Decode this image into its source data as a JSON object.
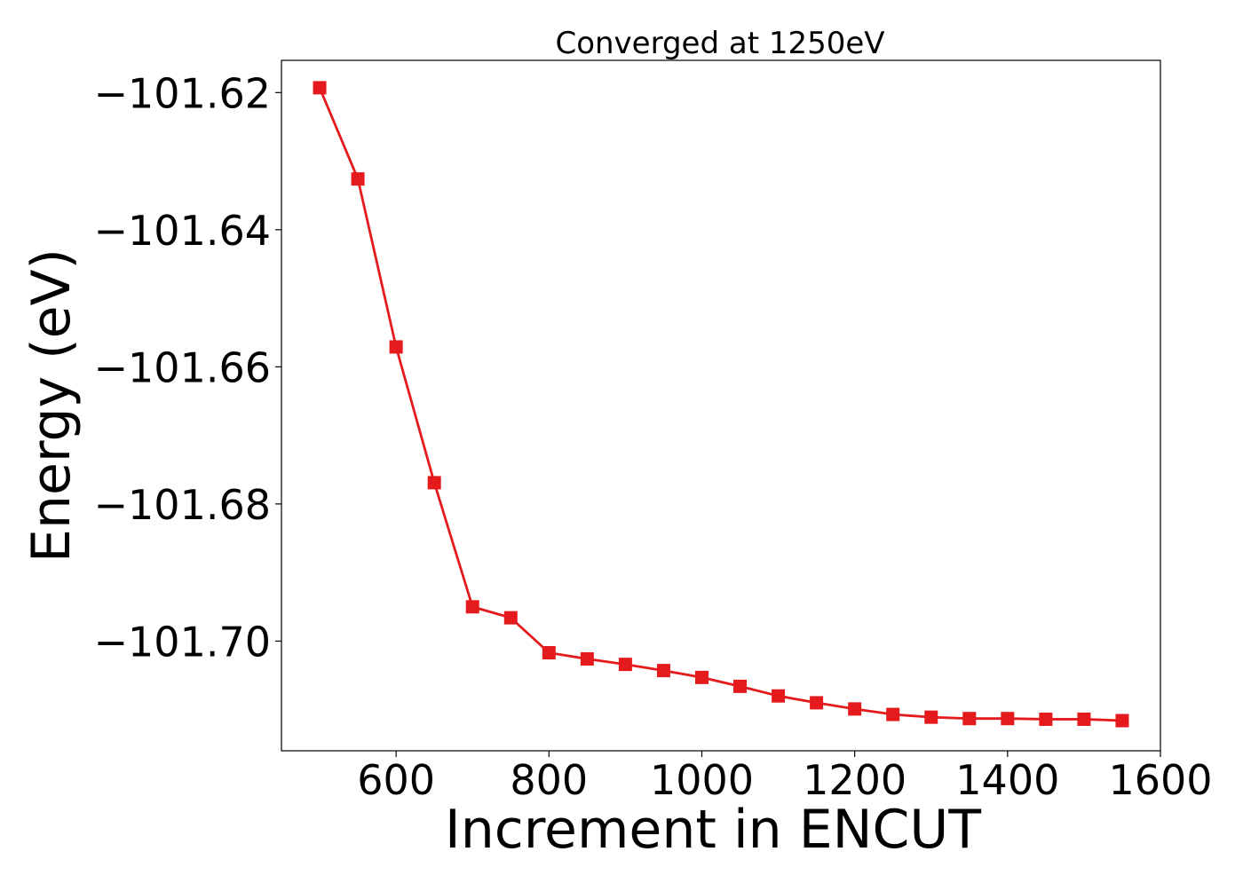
{
  "chart_data": {
    "type": "line",
    "title": "Converged at 1250eV",
    "xlabel": "Increment in ENCUT",
    "ylabel": "Energy (eV)",
    "xlim": [
      450,
      1600
    ],
    "ylim": [
      -101.716,
      -101.6153
    ],
    "x_ticks": [
      600,
      800,
      1000,
      1200,
      1400,
      1600
    ],
    "x_tick_labels": [
      "600",
      "800",
      "1000",
      "1200",
      "1400",
      "1600"
    ],
    "y_ticks": [
      -101.62,
      -101.64,
      -101.66,
      -101.68,
      -101.7
    ],
    "y_tick_labels": [
      "−101.62",
      "−101.64",
      "−101.66",
      "−101.68",
      "−101.70"
    ],
    "grid": false,
    "series": [
      {
        "color": "#e41a1c",
        "marker": "square",
        "x": [
          500,
          550,
          600,
          650,
          700,
          750,
          800,
          850,
          900,
          950,
          1000,
          1050,
          1100,
          1150,
          1200,
          1250,
          1300,
          1350,
          1400,
          1450,
          1500,
          1550
        ],
        "y": [
          -101.6193,
          -101.6326,
          -101.6571,
          -101.6769,
          -101.695,
          -101.6966,
          -101.7017,
          -101.7026,
          -101.7034,
          -101.7043,
          -101.7053,
          -101.7066,
          -101.708,
          -101.709,
          -101.7099,
          -101.7107,
          -101.7111,
          -101.7113,
          -101.7113,
          -101.7114,
          -101.7114,
          -101.7116
        ]
      }
    ]
  }
}
